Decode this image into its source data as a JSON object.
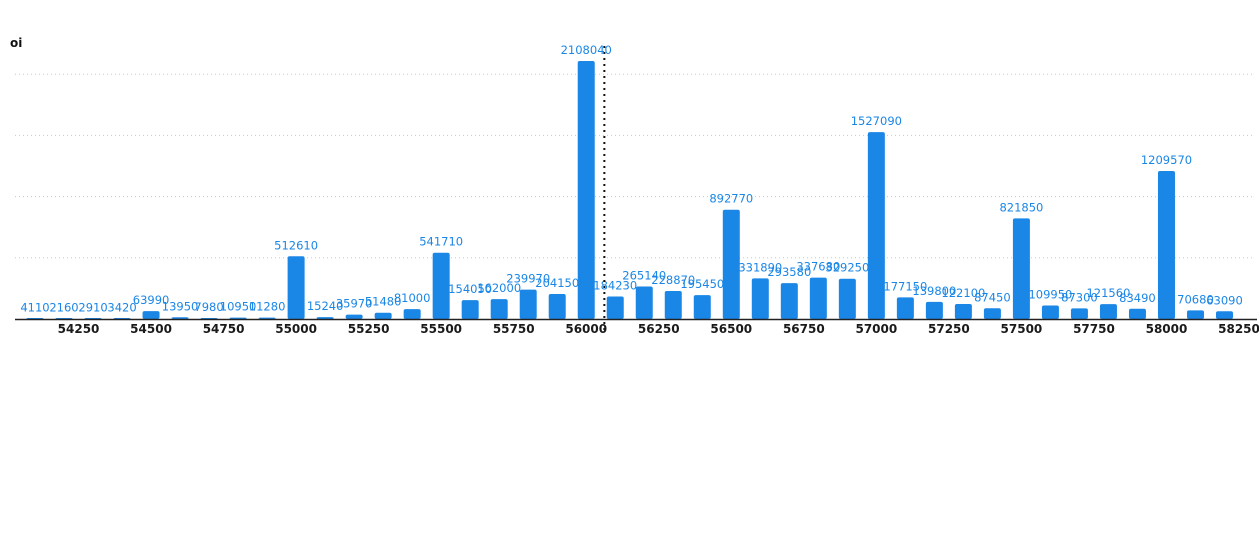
{
  "chart_data": {
    "type": "bar",
    "ylabel": "oi",
    "xlabel": "",
    "title": "",
    "bar_color": "#1a86e6",
    "label_color": "#1a86e6",
    "axis_color": "#222222",
    "grid": true,
    "grid_style": "dotted",
    "ylim": [
      0,
      2150000
    ],
    "grid_values": [
      500000,
      1000000,
      1500000,
      2000000
    ],
    "marker_line_x": 56062.5,
    "x_ticks": [
      54250,
      54500,
      54750,
      55000,
      55250,
      55500,
      55750,
      56000,
      56250,
      56500,
      56750,
      57000,
      57250,
      57500,
      57750,
      58000,
      58250
    ],
    "x_tick_labels": [
      "54250",
      "54500",
      "54750",
      "55000",
      "55250",
      "55500",
      "55750",
      "56000",
      "56250",
      "56500",
      "56750",
      "57000",
      "57250",
      "57500",
      "57750",
      "58000",
      "58250"
    ],
    "x": [
      54100,
      54200,
      54300,
      54400,
      54500,
      54600,
      54700,
      54800,
      54900,
      55000,
      55100,
      55200,
      55300,
      55400,
      55500,
      55600,
      55700,
      55800,
      55900,
      56000,
      56100,
      56200,
      56300,
      56400,
      56500,
      56600,
      56700,
      56800,
      56900,
      57000,
      57100,
      57200,
      57300,
      57400,
      57500,
      57600,
      57700,
      57800,
      57900,
      58000,
      58100,
      58200
    ],
    "values": [
      4110,
      2160,
      2910,
      3420,
      63990,
      13950,
      7980,
      10950,
      11280,
      512610,
      15240,
      35970,
      51480,
      81000,
      541710,
      154050,
      162000,
      239970,
      204150,
      2108040,
      184230,
      265140,
      228870,
      195450,
      892770,
      331890,
      293580,
      337680,
      329250,
      1527090,
      177150,
      139800,
      122100,
      87450,
      821850,
      109950,
      87300,
      121560,
      83490,
      1209570,
      70680,
      63090
    ],
    "value_labels": [
      "4110",
      "2160",
      "2910",
      "3420",
      "63990",
      "13950",
      "7980",
      "10950",
      "11280",
      "512610",
      "15240",
      "35970",
      "51480",
      "81000",
      "541710",
      "154050",
      "162000",
      "239970",
      "204150",
      "2108040",
      "184230",
      "265140",
      "228870",
      "195450",
      "892770",
      "331890",
      "293580",
      "337680",
      "329250",
      "1527090",
      "177150",
      "139800",
      "122100",
      "87450",
      "821850",
      "109950",
      "87300",
      "121560",
      "83490",
      "1209570",
      "70680",
      "63090"
    ]
  }
}
